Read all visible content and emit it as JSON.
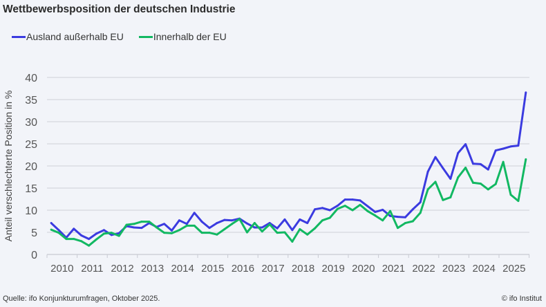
{
  "chart_data": {
    "type": "line",
    "title": "Wettbewerbsposition der deutschen Industrie",
    "xlabel": "",
    "ylabel": "Anteil verschlechterte Position in %",
    "ylim": [
      0,
      40
    ],
    "yticks": [
      0,
      5,
      10,
      15,
      20,
      25,
      30,
      35,
      40
    ],
    "xtick_labels": [
      "2010",
      "2011",
      "2012",
      "2013",
      "2014",
      "2015",
      "2016",
      "2017",
      "2018",
      "2019",
      "2020",
      "2021",
      "2022",
      "2023",
      "2024",
      "2025"
    ],
    "grid": "horizontal",
    "legend_position": "top-left",
    "x": [
      "2010 Q1",
      "2010 Q2",
      "2010 Q3",
      "2010 Q4",
      "2011 Q1",
      "2011 Q2",
      "2011 Q3",
      "2011 Q4",
      "2012 Q1",
      "2012 Q2",
      "2012 Q3",
      "2012 Q4",
      "2013 Q1",
      "2013 Q2",
      "2013 Q3",
      "2013 Q4",
      "2014 Q1",
      "2014 Q2",
      "2014 Q3",
      "2014 Q4",
      "2015 Q1",
      "2015 Q2",
      "2015 Q3",
      "2015 Q4",
      "2016 Q1",
      "2016 Q2",
      "2016 Q3",
      "2016 Q4",
      "2017 Q1",
      "2017 Q2",
      "2017 Q3",
      "2017 Q4",
      "2018 Q1",
      "2018 Q2",
      "2018 Q3",
      "2018 Q4",
      "2019 Q1",
      "2019 Q2",
      "2019 Q3",
      "2019 Q4",
      "2020 Q1",
      "2020 Q2",
      "2020 Q3",
      "2020 Q4",
      "2021 Q1",
      "2021 Q2",
      "2021 Q3",
      "2021 Q4",
      "2022 Q1",
      "2022 Q2",
      "2022 Q3",
      "2022 Q4",
      "2023 Q1",
      "2023 Q2",
      "2023 Q3",
      "2023 Q4",
      "2024 Q1",
      "2024 Q2",
      "2024 Q3",
      "2024 Q4",
      "2025 Q1",
      "2025 Q2",
      "2025 Q3",
      "2025 Q4"
    ],
    "series": [
      {
        "name": "Ausland außerhalb EU",
        "color": "#3b3be0",
        "values": [
          7.1,
          5.5,
          3.8,
          5.8,
          4.3,
          3.5,
          4.7,
          5.5,
          4.4,
          4.8,
          6.4,
          6.1,
          6.0,
          7.1,
          6.2,
          6.9,
          5.4,
          7.7,
          6.9,
          9.4,
          7.4,
          6.0,
          7.1,
          7.8,
          7.7,
          8.1,
          7.0,
          6.1,
          6.1,
          7.1,
          5.9,
          7.9,
          5.5,
          7.9,
          7.1,
          10.2,
          10.5,
          10.0,
          11.0,
          12.4,
          12.4,
          12.2,
          10.9,
          9.6,
          10.1,
          8.7,
          8.5,
          8.4,
          10.2,
          11.8,
          18.7,
          22.0,
          19.5,
          17.1,
          22.9,
          24.9,
          20.5,
          20.4,
          19.2,
          23.5,
          23.9,
          24.4,
          24.6,
          36.6
        ]
      },
      {
        "name": "Innerhalb der EU",
        "color": "#12b862",
        "values": [
          5.6,
          4.9,
          3.5,
          3.5,
          3.0,
          2.0,
          3.4,
          4.7,
          4.9,
          4.2,
          6.7,
          6.9,
          7.4,
          7.4,
          6.1,
          4.9,
          4.8,
          5.5,
          6.5,
          6.5,
          4.9,
          4.9,
          4.5,
          5.7,
          6.9,
          8.0,
          5.0,
          7.1,
          5.2,
          6.8,
          4.9,
          5.0,
          2.9,
          5.7,
          4.5,
          5.9,
          7.7,
          8.3,
          10.3,
          11.0,
          10.0,
          11.2,
          9.8,
          8.8,
          7.7,
          9.8,
          6.0,
          7.1,
          7.5,
          9.4,
          14.7,
          16.4,
          12.3,
          12.9,
          17.4,
          19.6,
          16.2,
          16.0,
          14.7,
          15.9,
          20.9,
          13.5,
          12.1,
          21.5
        ]
      }
    ]
  },
  "footer": {
    "source": "Quelle: ifo Konjunkturumfragen,  Oktober 2025.",
    "copyright": "© ifo Institut"
  }
}
